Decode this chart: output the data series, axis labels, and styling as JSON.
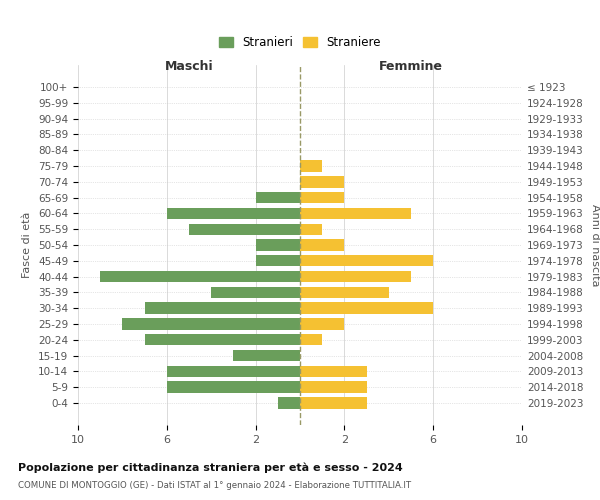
{
  "age_groups": [
    "100+",
    "95-99",
    "90-94",
    "85-89",
    "80-84",
    "75-79",
    "70-74",
    "65-69",
    "60-64",
    "55-59",
    "50-54",
    "45-49",
    "40-44",
    "35-39",
    "30-34",
    "25-29",
    "20-24",
    "15-19",
    "10-14",
    "5-9",
    "0-4"
  ],
  "birth_years": [
    "≤ 1923",
    "1924-1928",
    "1929-1933",
    "1934-1938",
    "1939-1943",
    "1944-1948",
    "1949-1953",
    "1954-1958",
    "1959-1963",
    "1964-1968",
    "1969-1973",
    "1974-1978",
    "1979-1983",
    "1984-1988",
    "1989-1993",
    "1994-1998",
    "1999-2003",
    "2004-2008",
    "2009-2013",
    "2014-2018",
    "2019-2023"
  ],
  "males": [
    0,
    0,
    0,
    0,
    0,
    0,
    0,
    2,
    6,
    5,
    2,
    2,
    9,
    4,
    7,
    8,
    7,
    3,
    6,
    6,
    1
  ],
  "females": [
    0,
    0,
    0,
    0,
    0,
    1,
    2,
    2,
    5,
    1,
    2,
    6,
    5,
    4,
    6,
    2,
    1,
    0,
    3,
    3,
    3
  ],
  "male_color": "#6a9e5b",
  "female_color": "#f5c132",
  "grid_color": "#cccccc",
  "center_line_color": "#999966",
  "title": "Popolazione per cittadinanza straniera per età e sesso - 2024",
  "subtitle": "COMUNE DI MONTOGGIO (GE) - Dati ISTAT al 1° gennaio 2024 - Elaborazione TUTTITALIA.IT",
  "xlabel_left": "Maschi",
  "xlabel_right": "Femmine",
  "ylabel_left": "Fasce di età",
  "ylabel_right": "Anni di nascita",
  "legend_male": "Stranieri",
  "legend_female": "Straniere",
  "xlim": 10,
  "xtick_positions": [
    -10,
    -6,
    -2,
    2,
    6,
    10
  ],
  "xtick_labels": [
    "10",
    "6",
    "2",
    "2",
    "6",
    "10"
  ]
}
